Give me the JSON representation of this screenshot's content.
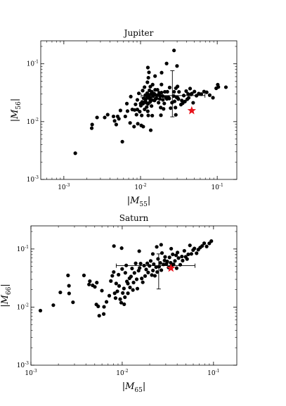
{
  "chart_data": [
    {
      "type": "scatter",
      "title": "Jupiter",
      "xlabel": "|M55|",
      "ylabel": "|M56|",
      "xlabel_parts": {
        "pre": "|",
        "var": "M",
        "sub": "55",
        "post": "|"
      },
      "ylabel_parts": {
        "pre": "|",
        "var": "M",
        "sub": "56",
        "post": "|"
      },
      "xscale": "log",
      "yscale": "log",
      "xlim": [
        0.0005,
        0.18
      ],
      "ylim": [
        0.001,
        0.25
      ],
      "grid": false,
      "xticks": [
        {
          "base": "10",
          "exp": "-3",
          "value": 0.001
        },
        {
          "base": "10",
          "exp": "-2",
          "value": 0.01
        },
        {
          "base": "10",
          "exp": "-1",
          "value": 0.1
        }
      ],
      "yticks": [
        {
          "base": "10",
          "exp": "-3",
          "value": 0.001
        },
        {
          "base": "10",
          "exp": "-2",
          "value": 0.01
        },
        {
          "base": "10",
          "exp": "-1",
          "value": 0.1
        }
      ],
      "marker_color": "#000000",
      "star_color": "#e8141c",
      "points": [
        [
          0.00141,
          0.00284
        ],
        [
          0.00231,
          0.0077
        ],
        [
          0.00234,
          0.0089
        ],
        [
          0.00271,
          0.0118
        ],
        [
          0.00341,
          0.0118
        ],
        [
          0.00373,
          0.0132
        ],
        [
          0.00444,
          0.0123
        ],
        [
          0.00459,
          0.0103
        ],
        [
          0.00482,
          0.0089
        ],
        [
          0.00503,
          0.0123
        ],
        [
          0.00522,
          0.0112
        ],
        [
          0.00547,
          0.0156
        ],
        [
          0.00579,
          0.0045
        ],
        [
          0.00633,
          0.0123
        ],
        [
          0.00663,
          0.0205
        ],
        [
          0.00676,
          0.0152
        ],
        [
          0.00731,
          0.0095
        ],
        [
          0.00746,
          0.0271
        ],
        [
          0.00781,
          0.0162
        ],
        [
          0.00823,
          0.0082
        ],
        [
          0.00838,
          0.0159
        ],
        [
          0.00861,
          0.0199
        ],
        [
          0.00885,
          0.0132
        ],
        [
          0.00909,
          0.0162
        ],
        [
          0.00909,
          0.0238
        ],
        [
          0.00921,
          0.0092
        ],
        [
          0.0095,
          0.0308
        ],
        [
          0.00977,
          0.0149
        ],
        [
          0.01004,
          0.0205
        ],
        [
          0.01011,
          0.0189
        ],
        [
          0.01022,
          0.0086
        ],
        [
          0.01036,
          0.0128
        ],
        [
          0.01049,
          0.0219
        ],
        [
          0.01066,
          0.0344
        ],
        [
          0.0108,
          0.0205
        ],
        [
          0.01085,
          0.0082
        ],
        [
          0.01095,
          0.0254
        ],
        [
          0.01127,
          0.0395
        ],
        [
          0.0113,
          0.0163
        ],
        [
          0.01157,
          0.0287
        ],
        [
          0.01158,
          0.0226
        ],
        [
          0.01179,
          0.0248
        ],
        [
          0.01197,
          0.0211
        ],
        [
          0.01204,
          0.0179
        ],
        [
          0.01222,
          0.0311
        ],
        [
          0.0123,
          0.0261
        ],
        [
          0.0123,
          0.048
        ],
        [
          0.01243,
          0.0151
        ],
        [
          0.01256,
          0.0204
        ],
        [
          0.01261,
          0.0128
        ],
        [
          0.01265,
          0.0575
        ],
        [
          0.01287,
          0.0287
        ],
        [
          0.01306,
          0.0347
        ],
        [
          0.01319,
          0.0248
        ],
        [
          0.01331,
          0.0219
        ],
        [
          0.01338,
          0.0259
        ],
        [
          0.01342,
          0.0402
        ],
        [
          0.01358,
          0.0071
        ],
        [
          0.01373,
          0.0303
        ],
        [
          0.01391,
          0.0186
        ],
        [
          0.01405,
          0.0329
        ],
        [
          0.01419,
          0.0236
        ],
        [
          0.01421,
          0.0127
        ],
        [
          0.01438,
          0.0437
        ],
        [
          0.01455,
          0.0276
        ],
        [
          0.01505,
          0.0305
        ],
        [
          0.0152,
          0.0232
        ],
        [
          0.01552,
          0.0355
        ],
        [
          0.01569,
          0.0248
        ],
        [
          0.01588,
          0.0287
        ],
        [
          0.01615,
          0.0252
        ],
        [
          0.01662,
          0.0355
        ],
        [
          0.01683,
          0.0287
        ],
        [
          0.01718,
          0.0213
        ],
        [
          0.01754,
          0.0315
        ],
        [
          0.01783,
          0.0247
        ],
        [
          0.01813,
          0.0278
        ],
        [
          0.01832,
          0.0175
        ],
        [
          0.01844,
          0.0129
        ],
        [
          0.01875,
          0.0438
        ],
        [
          0.01879,
          0.0318
        ],
        [
          0.01945,
          0.0277
        ],
        [
          0.01956,
          0.0238
        ],
        [
          0.01996,
          0.0166
        ],
        [
          0.0204,
          0.0206
        ],
        [
          0.02076,
          0.0328
        ],
        [
          0.02133,
          0.0263
        ],
        [
          0.02204,
          0.0247
        ],
        [
          0.02237,
          0.0329
        ],
        [
          0.02311,
          0.0263
        ],
        [
          0.02366,
          0.0251
        ],
        [
          0.02396,
          0.0389
        ],
        [
          0.02468,
          0.0171
        ],
        [
          0.0257,
          0.0213
        ],
        [
          0.02709,
          0.0277
        ],
        [
          0.02737,
          0.0328
        ],
        [
          0.02778,
          0.0224
        ],
        [
          0.02853,
          0.0175
        ],
        [
          0.02883,
          0.0131
        ],
        [
          0.02891,
          0.0379
        ],
        [
          0.02962,
          0.0262
        ],
        [
          0.03035,
          0.0406
        ],
        [
          0.03047,
          0.0259
        ],
        [
          0.03115,
          0.0246
        ],
        [
          0.03174,
          0.0327
        ],
        [
          0.03365,
          0.0197
        ],
        [
          0.03451,
          0.0232
        ],
        [
          0.03549,
          0.0208
        ],
        [
          0.03662,
          0.0283
        ],
        [
          0.03792,
          0.0223
        ],
        [
          0.03937,
          0.0337
        ],
        [
          0.04067,
          0.0244
        ],
        [
          0.04165,
          0.0301
        ],
        [
          0.04245,
          0.0258
        ],
        [
          0.04429,
          0.0373
        ],
        [
          0.0455,
          0.0296
        ],
        [
          0.04659,
          0.0306
        ],
        [
          0.04853,
          0.0212
        ],
        [
          0.05046,
          0.0331
        ],
        [
          0.05359,
          0.0281
        ],
        [
          0.05747,
          0.0306
        ],
        [
          0.06196,
          0.0299
        ],
        [
          0.06725,
          0.0331
        ],
        [
          0.07289,
          0.0322
        ],
        [
          0.07976,
          0.0287
        ],
        [
          0.08796,
          0.0259
        ],
        [
          0.09695,
          0.0377
        ],
        [
          0.10157,
          0.0436
        ],
        [
          0.10336,
          0.0397
        ],
        [
          0.12975,
          0.0394
        ],
        [
          0.02733,
          0.1703
        ],
        [
          0.0299,
          0.0918
        ],
        [
          0.01246,
          0.0862
        ],
        [
          0.01288,
          0.0712
        ],
        [
          0.02187,
          0.1012
        ],
        [
          0.01546,
          0.0613
        ],
        [
          0.01884,
          0.0703
        ]
      ],
      "star": [
        0.0465,
        0.0155
      ],
      "errorbar": {
        "x": 0.026,
        "y": 0.0282,
        "xerr": [
          0.0158,
          0.0432
        ],
        "yerr": [
          0.0161,
          0.0481
        ]
      }
    },
    {
      "type": "scatter",
      "title": "Saturn",
      "xlabel": "|M65|",
      "ylabel": "|M66|",
      "xlabel_parts": {
        "pre": "|",
        "var": "M",
        "sub": "65",
        "post": "|"
      },
      "ylabel_parts": {
        "pre": "|",
        "var": "M",
        "sub": "66",
        "post": "|"
      },
      "xscale": "log",
      "yscale": "log",
      "xlim": [
        0.001,
        0.18
      ],
      "ylim": [
        0.001,
        0.25
      ],
      "grid": false,
      "xticks": [
        {
          "base": "10",
          "exp": "-3",
          "value": 0.001
        },
        {
          "base": "10",
          "exp": "-2",
          "value": 0.01
        },
        {
          "base": "10",
          "exp": "-1",
          "value": 0.1
        }
      ],
      "yticks": [
        {
          "base": "10",
          "exp": "-3",
          "value": 0.001
        },
        {
          "base": "10",
          "exp": "-2",
          "value": 0.01
        },
        {
          "base": "10",
          "exp": "-1",
          "value": 0.1
        }
      ],
      "marker_color": "#000000",
      "star_color": "#e8141c",
      "points": [
        [
          0.00127,
          0.0087
        ],
        [
          0.00176,
          0.0108
        ],
        [
          0.0021,
          0.0179
        ],
        [
          0.00255,
          0.0351
        ],
        [
          0.00261,
          0.0233
        ],
        [
          0.00262,
          0.0172
        ],
        [
          0.00289,
          0.0121
        ],
        [
          0.00381,
          0.0351
        ],
        [
          0.00433,
          0.0245
        ],
        [
          0.00442,
          0.0279
        ],
        [
          0.00474,
          0.0237
        ],
        [
          0.00502,
          0.0223
        ],
        [
          0.00521,
          0.0111
        ],
        [
          0.00527,
          0.0264
        ],
        [
          0.00546,
          0.0103
        ],
        [
          0.0056,
          0.0071
        ],
        [
          0.00599,
          0.0192
        ],
        [
          0.00627,
          0.0076
        ],
        [
          0.00632,
          0.0101
        ],
        [
          0.00673,
          0.0123
        ],
        [
          0.00722,
          0.0157
        ],
        [
          0.00751,
          0.0281
        ],
        [
          0.00779,
          0.0346
        ],
        [
          0.00807,
          0.0402
        ],
        [
          0.00827,
          0.0173
        ],
        [
          0.00845,
          0.0143
        ],
        [
          0.00859,
          0.0255
        ],
        [
          0.00885,
          0.0187
        ],
        [
          0.00911,
          0.0361
        ],
        [
          0.00925,
          0.0231
        ],
        [
          0.0095,
          0.0137
        ],
        [
          0.00975,
          0.0119
        ],
        [
          0.00998,
          0.0453
        ],
        [
          0.01014,
          0.0175
        ],
        [
          0.01044,
          0.0209
        ],
        [
          0.01051,
          0.0112
        ],
        [
          0.0107,
          0.0148
        ],
        [
          0.01082,
          0.0389
        ],
        [
          0.01107,
          0.0522
        ],
        [
          0.01126,
          0.0276
        ],
        [
          0.01154,
          0.0254
        ],
        [
          0.01155,
          0.0173
        ],
        [
          0.01202,
          0.0313
        ],
        [
          0.01217,
          0.0218
        ],
        [
          0.01248,
          0.0336
        ],
        [
          0.01281,
          0.0462
        ],
        [
          0.0131,
          0.0197
        ],
        [
          0.01331,
          0.0265
        ],
        [
          0.01361,
          0.0387
        ],
        [
          0.01405,
          0.0566
        ],
        [
          0.01441,
          0.0301
        ],
        [
          0.01467,
          0.0208
        ],
        [
          0.01511,
          0.0423
        ],
        [
          0.01552,
          0.0471
        ],
        [
          0.0159,
          0.0561
        ],
        [
          0.01636,
          0.0311
        ],
        [
          0.01679,
          0.0267
        ],
        [
          0.01737,
          0.0517
        ],
        [
          0.01781,
          0.0343
        ],
        [
          0.0183,
          0.0444
        ],
        [
          0.01883,
          0.0567
        ],
        [
          0.01924,
          0.0394
        ],
        [
          0.01991,
          0.0511
        ],
        [
          0.02051,
          0.0623
        ],
        [
          0.02111,
          0.0356
        ],
        [
          0.02172,
          0.0427
        ],
        [
          0.02216,
          0.0548
        ],
        [
          0.0228,
          0.0346
        ],
        [
          0.0235,
          0.0487
        ],
        [
          0.02417,
          0.0402
        ],
        [
          0.02467,
          0.0675
        ],
        [
          0.02536,
          0.0498
        ],
        [
          0.02614,
          0.0576
        ],
        [
          0.02682,
          0.0432
        ],
        [
          0.02728,
          0.0853
        ],
        [
          0.02836,
          0.0542
        ],
        [
          0.0291,
          0.0634
        ],
        [
          0.02949,
          0.0731
        ],
        [
          0.03053,
          0.0554
        ],
        [
          0.03115,
          0.0611
        ],
        [
          0.03222,
          0.0481
        ],
        [
          0.03296,
          0.0718
        ],
        [
          0.03394,
          0.0579
        ],
        [
          0.03459,
          0.0511
        ],
        [
          0.03573,
          0.0808
        ],
        [
          0.03648,
          0.0543
        ],
        [
          0.03782,
          0.0623
        ],
        [
          0.0389,
          0.0779
        ],
        [
          0.03947,
          0.0467
        ],
        [
          0.04035,
          0.0871
        ],
        [
          0.0414,
          0.0698
        ],
        [
          0.04325,
          0.0536
        ],
        [
          0.04502,
          0.0742
        ],
        [
          0.04591,
          0.0631
        ],
        [
          0.04791,
          0.0931
        ],
        [
          0.04951,
          0.0734
        ],
        [
          0.05135,
          0.0672
        ],
        [
          0.05288,
          0.0808
        ],
        [
          0.05514,
          0.1154
        ],
        [
          0.05725,
          0.0824
        ],
        [
          0.0598,
          0.0958
        ],
        [
          0.06181,
          0.1023
        ],
        [
          0.06528,
          0.0846
        ],
        [
          0.06814,
          0.0976
        ],
        [
          0.07146,
          0.1059
        ],
        [
          0.07509,
          0.1128
        ],
        [
          0.07905,
          0.1254
        ],
        [
          0.08415,
          0.1105
        ],
        [
          0.08996,
          0.1249
        ],
        [
          0.09466,
          0.1367
        ],
        [
          0.02389,
          0.1089
        ],
        [
          0.02669,
          0.1183
        ],
        [
          0.0344,
          0.1012
        ],
        [
          0.00986,
          0.1034
        ],
        [
          0.01536,
          0.0918
        ],
        [
          0.00812,
          0.1123
        ],
        [
          0.02164,
          0.0821
        ]
      ],
      "star": [
        0.0342,
        0.0468
      ],
      "errorbar": {
        "x": 0.0251,
        "y": 0.0516,
        "xerr": [
          0.0165,
          0.0376
        ],
        "yerr": [
          0.0311,
          0.0307
        ]
      }
    }
  ]
}
